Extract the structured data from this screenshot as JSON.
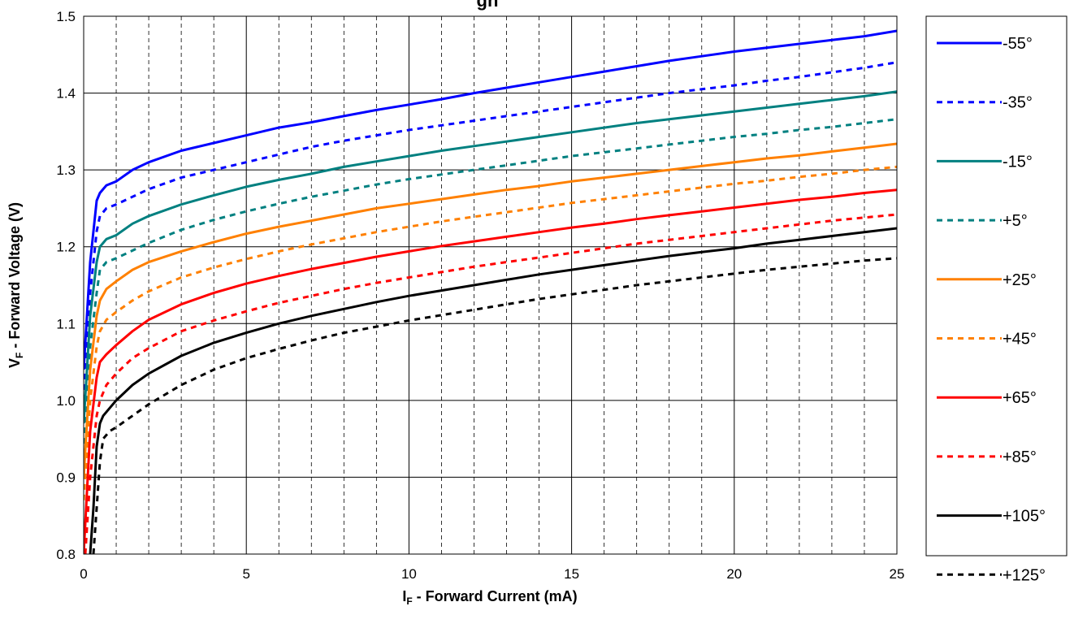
{
  "chart_data": {
    "type": "line",
    "title": "gh",
    "xlabel": {
      "main": "I",
      "sub": "F",
      "rest": " - Forward Current (mA)"
    },
    "ylabel": {
      "main": "V",
      "sub": "F",
      "rest": " - Forward Voltage (V)"
    },
    "xlim": [
      0,
      25
    ],
    "ylim": [
      0.8,
      1.5
    ],
    "x_ticks": [
      "0",
      "5",
      "10",
      "15",
      "20",
      "25"
    ],
    "y_ticks": [
      "0.8",
      "0.9",
      "1.0",
      "1.1",
      "1.2",
      "1.3",
      "1.4",
      "1.5"
    ],
    "grid": {
      "major_x": true,
      "minor_x_dashed": true,
      "major_y": true
    },
    "legend_position": "right",
    "series": [
      {
        "name": "-55°",
        "color": "#0000ff",
        "dash": "solid",
        "x": [
          0,
          0.2,
          0.4,
          0.5,
          0.7,
          1,
          1.5,
          2,
          3,
          4,
          5,
          6,
          7,
          8,
          9,
          10,
          11,
          12,
          13,
          14,
          15,
          16,
          17,
          18,
          19,
          20,
          21,
          22,
          23,
          24,
          25
        ],
        "y": [
          1.04,
          1.18,
          1.26,
          1.27,
          1.28,
          1.285,
          1.3,
          1.31,
          1.325,
          1.335,
          1.345,
          1.355,
          1.362,
          1.37,
          1.378,
          1.385,
          1.392,
          1.4,
          1.407,
          1.414,
          1.421,
          1.428,
          1.435,
          1.442,
          1.448,
          1.454,
          1.459,
          1.464,
          1.469,
          1.474,
          1.481
        ]
      },
      {
        "name": "-35°",
        "color": "#0000ff",
        "dash": "dashed",
        "x": [
          0,
          0.2,
          0.4,
          0.5,
          0.7,
          1,
          1.5,
          2,
          3,
          4,
          5,
          6,
          7,
          8,
          9,
          10,
          11,
          12,
          13,
          14,
          15,
          16,
          17,
          18,
          19,
          20,
          21,
          22,
          23,
          24,
          25
        ],
        "y": [
          1.0,
          1.14,
          1.22,
          1.24,
          1.25,
          1.255,
          1.265,
          1.275,
          1.29,
          1.3,
          1.31,
          1.32,
          1.33,
          1.338,
          1.345,
          1.352,
          1.358,
          1.364,
          1.37,
          1.376,
          1.382,
          1.388,
          1.394,
          1.4,
          1.405,
          1.41,
          1.416,
          1.421,
          1.427,
          1.433,
          1.44
        ]
      },
      {
        "name": "-15°",
        "color": "#008080",
        "dash": "solid",
        "x": [
          0,
          0.2,
          0.4,
          0.5,
          0.7,
          1,
          1.5,
          2,
          3,
          4,
          5,
          6,
          7,
          8,
          9,
          10,
          11,
          12,
          13,
          14,
          15,
          16,
          17,
          18,
          19,
          20,
          21,
          22,
          23,
          24,
          25
        ],
        "y": [
          0.97,
          1.11,
          1.18,
          1.2,
          1.21,
          1.215,
          1.23,
          1.24,
          1.255,
          1.267,
          1.278,
          1.287,
          1.295,
          1.304,
          1.311,
          1.318,
          1.325,
          1.331,
          1.337,
          1.343,
          1.349,
          1.355,
          1.361,
          1.366,
          1.371,
          1.376,
          1.381,
          1.386,
          1.391,
          1.396,
          1.402
        ]
      },
      {
        "name": "+5°",
        "color": "#008080",
        "dash": "dashed",
        "x": [
          0,
          0.2,
          0.4,
          0.5,
          0.7,
          1,
          1.5,
          2,
          3,
          4,
          5,
          6,
          7,
          8,
          9,
          10,
          11,
          12,
          13,
          14,
          15,
          16,
          17,
          18,
          19,
          20,
          21,
          22,
          23,
          24,
          25
        ],
        "y": [
          0.93,
          1.07,
          1.14,
          1.17,
          1.18,
          1.185,
          1.195,
          1.205,
          1.222,
          1.235,
          1.246,
          1.256,
          1.265,
          1.273,
          1.281,
          1.288,
          1.294,
          1.3,
          1.306,
          1.312,
          1.318,
          1.323,
          1.328,
          1.333,
          1.338,
          1.343,
          1.347,
          1.352,
          1.356,
          1.361,
          1.366
        ]
      },
      {
        "name": "+25°",
        "color": "#ff8000",
        "dash": "solid",
        "x": [
          0,
          0.2,
          0.4,
          0.5,
          0.7,
          1,
          1.5,
          2,
          3,
          4,
          5,
          6,
          7,
          8,
          9,
          10,
          11,
          12,
          13,
          14,
          15,
          16,
          17,
          18,
          19,
          20,
          21,
          22,
          23,
          24,
          25
        ],
        "y": [
          0.9,
          1.04,
          1.11,
          1.13,
          1.145,
          1.155,
          1.17,
          1.18,
          1.194,
          1.206,
          1.217,
          1.226,
          1.234,
          1.242,
          1.25,
          1.256,
          1.262,
          1.268,
          1.274,
          1.279,
          1.285,
          1.29,
          1.295,
          1.3,
          1.305,
          1.31,
          1.315,
          1.319,
          1.324,
          1.329,
          1.334
        ]
      },
      {
        "name": "+45°",
        "color": "#ff8000",
        "dash": "dashed",
        "x": [
          0,
          0.2,
          0.4,
          0.5,
          0.7,
          1,
          1.5,
          2,
          3,
          4,
          5,
          6,
          7,
          8,
          9,
          10,
          11,
          12,
          13,
          14,
          15,
          16,
          17,
          18,
          19,
          20,
          21,
          22,
          23,
          24,
          25
        ],
        "y": [
          0.87,
          1.0,
          1.07,
          1.09,
          1.105,
          1.115,
          1.13,
          1.142,
          1.16,
          1.173,
          1.184,
          1.194,
          1.203,
          1.211,
          1.219,
          1.226,
          1.233,
          1.239,
          1.245,
          1.251,
          1.257,
          1.262,
          1.267,
          1.272,
          1.277,
          1.282,
          1.286,
          1.291,
          1.295,
          1.3,
          1.304
        ]
      },
      {
        "name": "+65°",
        "color": "#ff0000",
        "dash": "solid",
        "x": [
          0,
          0.2,
          0.4,
          0.5,
          0.7,
          1,
          1.5,
          2,
          3,
          4,
          5,
          6,
          7,
          8,
          9,
          10,
          11,
          12,
          13,
          14,
          15,
          16,
          17,
          18,
          19,
          20,
          21,
          22,
          23,
          24,
          25
        ],
        "y": [
          0.8,
          0.96,
          1.03,
          1.05,
          1.06,
          1.072,
          1.09,
          1.105,
          1.125,
          1.14,
          1.152,
          1.162,
          1.171,
          1.179,
          1.187,
          1.194,
          1.201,
          1.207,
          1.213,
          1.219,
          1.225,
          1.23,
          1.236,
          1.241,
          1.246,
          1.251,
          1.256,
          1.261,
          1.265,
          1.27,
          1.274
        ]
      },
      {
        "name": "+85°",
        "color": "#ff0000",
        "dash": "dashed",
        "x": [
          0.05,
          0.2,
          0.4,
          0.5,
          0.7,
          1,
          1.5,
          2,
          3,
          4,
          5,
          6,
          7,
          8,
          9,
          10,
          11,
          12,
          13,
          14,
          15,
          16,
          17,
          18,
          19,
          20,
          21,
          22,
          23,
          24,
          25
        ],
        "y": [
          0.8,
          0.9,
          0.98,
          1.0,
          1.02,
          1.035,
          1.055,
          1.068,
          1.09,
          1.104,
          1.116,
          1.127,
          1.136,
          1.145,
          1.153,
          1.16,
          1.167,
          1.174,
          1.18,
          1.186,
          1.192,
          1.198,
          1.204,
          1.209,
          1.214,
          1.219,
          1.224,
          1.229,
          1.234,
          1.238,
          1.242
        ]
      },
      {
        "name": "+105°",
        "color": "#000000",
        "dash": "solid",
        "x": [
          0.2,
          0.3,
          0.4,
          0.5,
          0.6,
          0.8,
          1,
          1.5,
          2,
          3,
          4,
          5,
          6,
          7,
          8,
          9,
          10,
          11,
          12,
          13,
          14,
          15,
          16,
          17,
          18,
          19,
          20,
          21,
          22,
          23,
          24,
          25
        ],
        "y": [
          0.8,
          0.86,
          0.94,
          0.97,
          0.98,
          0.99,
          1.0,
          1.02,
          1.035,
          1.058,
          1.075,
          1.088,
          1.1,
          1.11,
          1.119,
          1.128,
          1.136,
          1.143,
          1.15,
          1.157,
          1.164,
          1.17,
          1.176,
          1.182,
          1.188,
          1.193,
          1.198,
          1.204,
          1.209,
          1.214,
          1.219,
          1.224
        ]
      },
      {
        "name": "+125°",
        "color": "#000000",
        "dash": "dashed",
        "x": [
          0.3,
          0.4,
          0.5,
          0.6,
          0.8,
          1,
          1.5,
          2,
          3,
          4,
          5,
          6,
          7,
          8,
          9,
          10,
          11,
          12,
          13,
          14,
          15,
          16,
          17,
          18,
          19,
          20,
          21,
          22,
          23,
          24,
          25
        ],
        "y": [
          0.8,
          0.86,
          0.92,
          0.95,
          0.96,
          0.965,
          0.98,
          0.995,
          1.02,
          1.04,
          1.055,
          1.067,
          1.078,
          1.088,
          1.096,
          1.104,
          1.111,
          1.118,
          1.125,
          1.132,
          1.138,
          1.144,
          1.15,
          1.155,
          1.16,
          1.165,
          1.17,
          1.174,
          1.178,
          1.182,
          1.185
        ]
      }
    ]
  }
}
